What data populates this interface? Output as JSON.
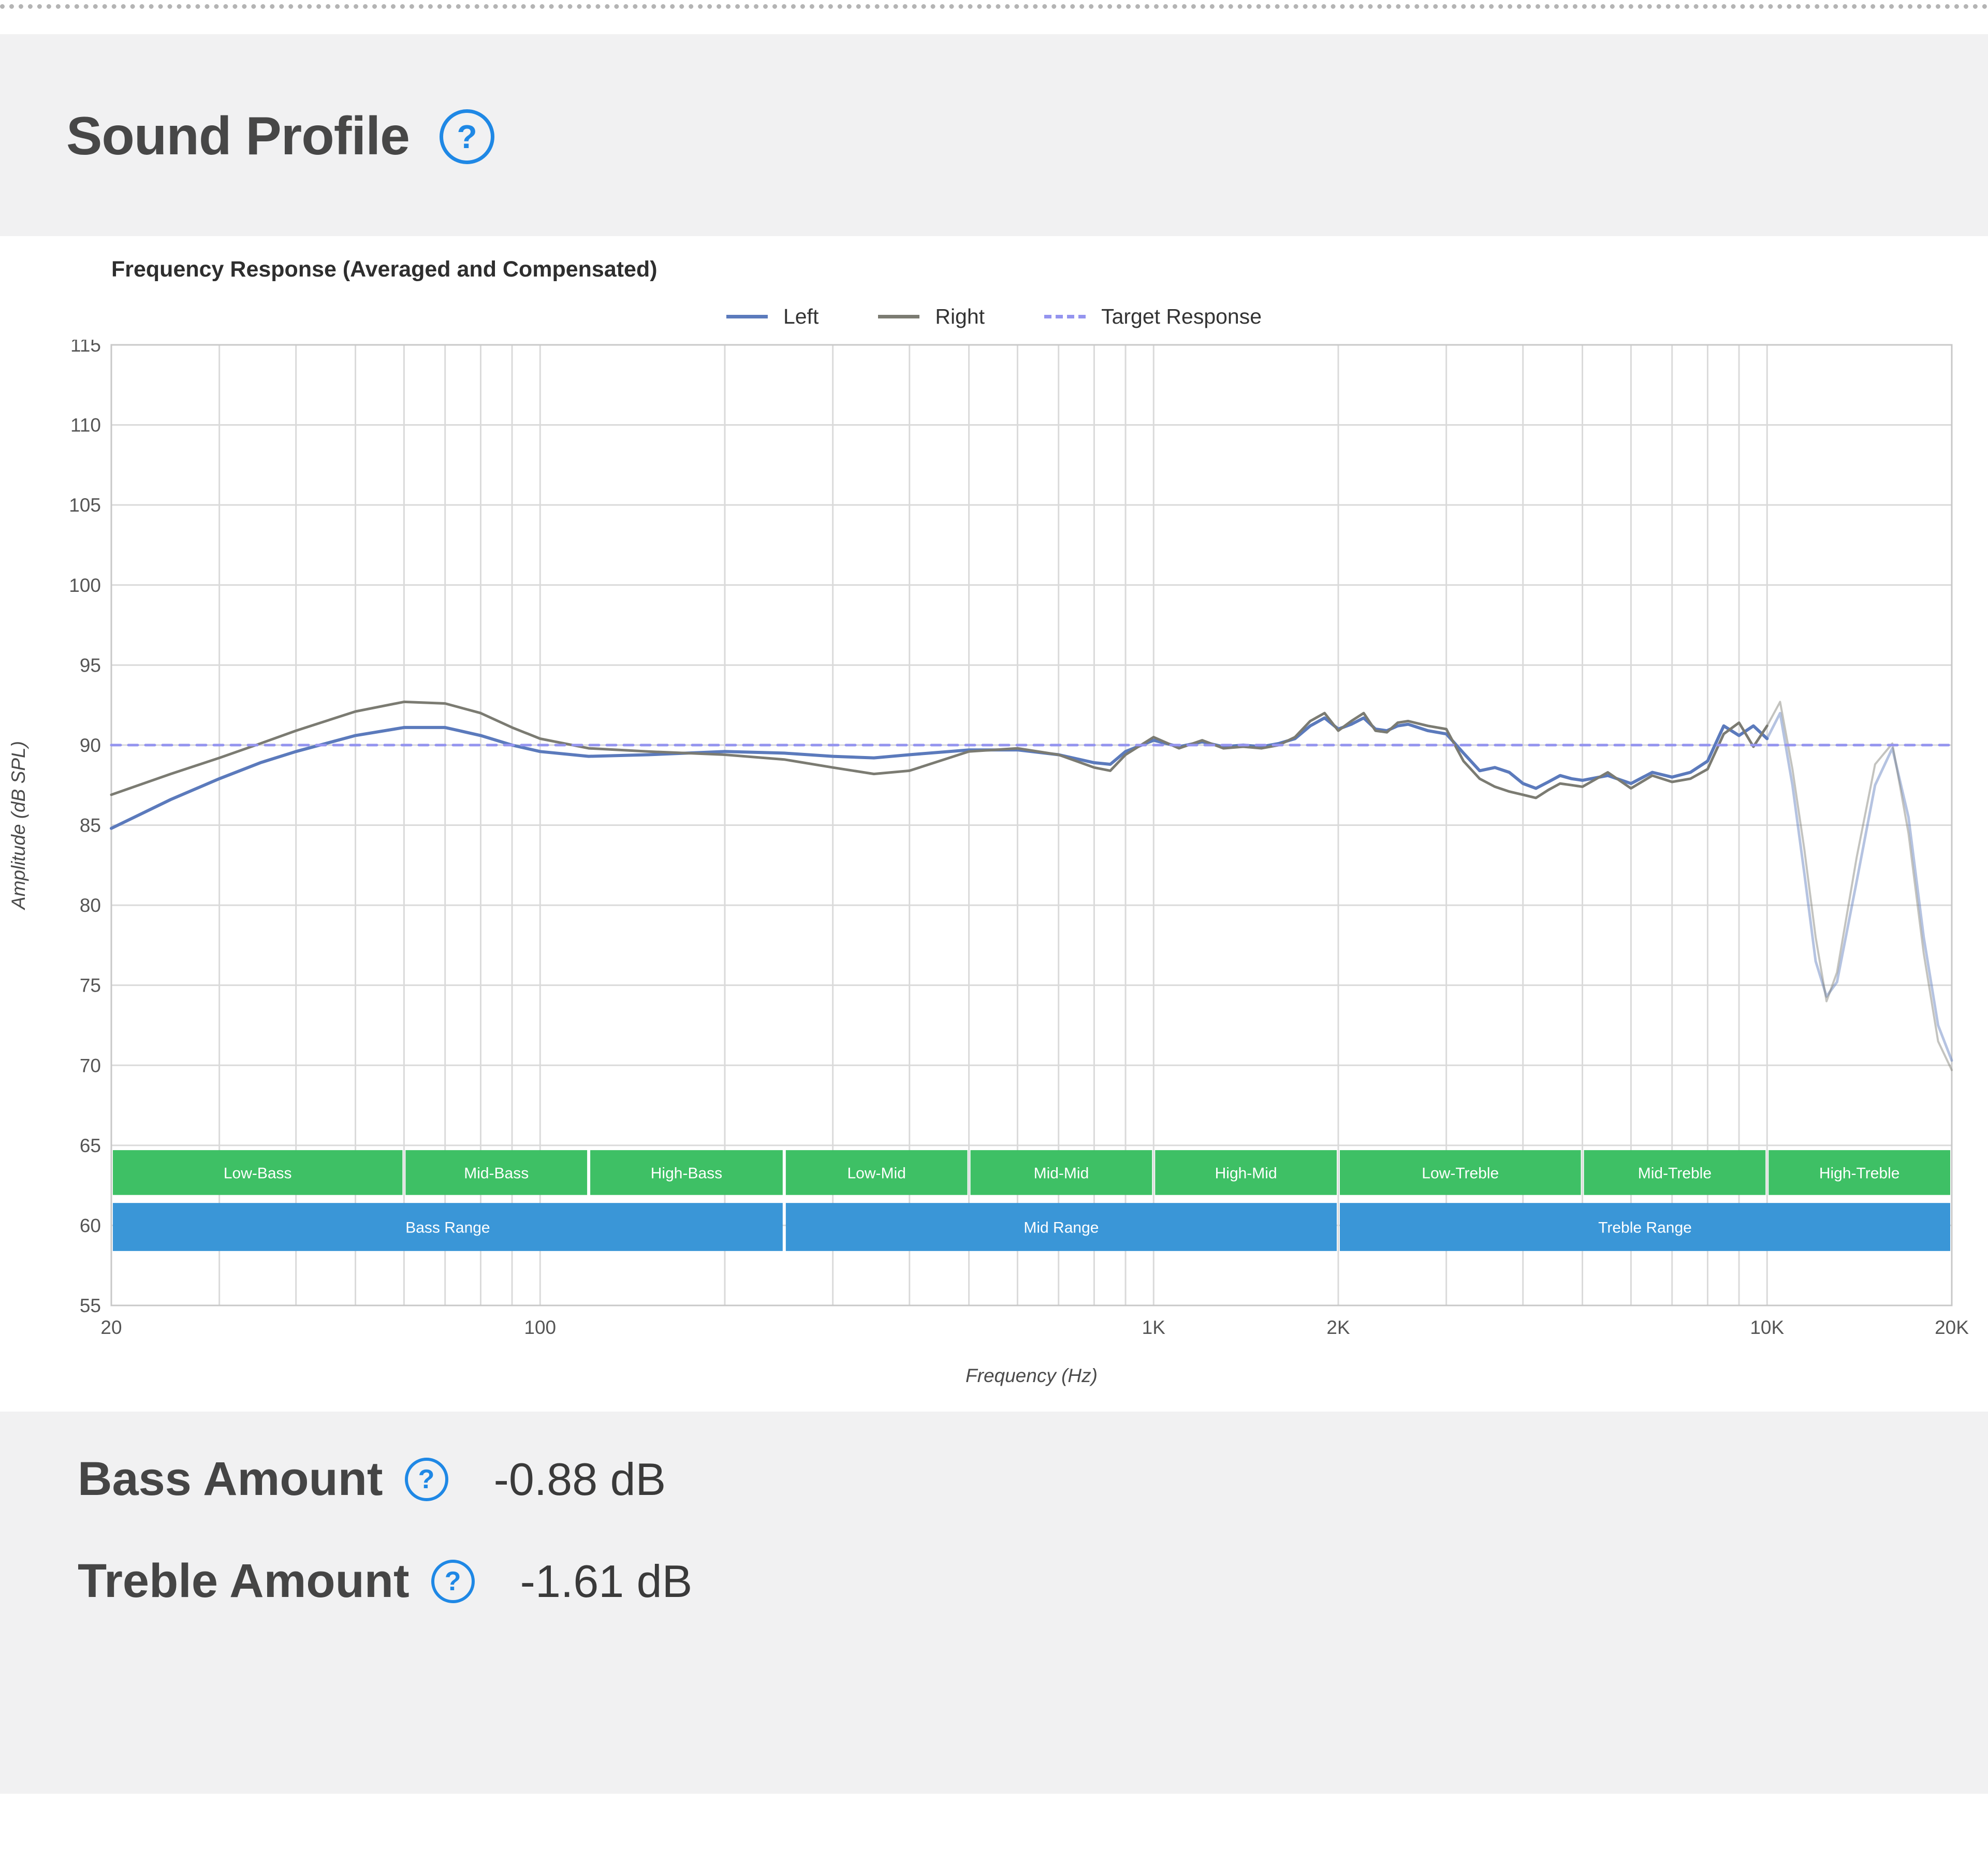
{
  "page": {
    "title": "Sound Profile"
  },
  "icons": {
    "help_glyph": "?"
  },
  "metrics": [
    {
      "label": "Bass Amount",
      "value": "-0.88 dB"
    },
    {
      "label": "Treble Amount",
      "value": "-1.61 dB"
    }
  ],
  "chart_data": {
    "type": "line",
    "title": "Frequency Response (Averaged and Compensated)",
    "xlabel": "Frequency (Hz)",
    "ylabel": "Amplitude (dB SPL)",
    "x_scale": "log",
    "xlim": [
      20,
      20000
    ],
    "ylim": [
      55,
      115
    ],
    "y_ticks": [
      55,
      60,
      65,
      70,
      75,
      80,
      85,
      90,
      95,
      100,
      105,
      110,
      115
    ],
    "x_ticks": [
      {
        "f": 20,
        "label": "20"
      },
      {
        "f": 100,
        "label": "100"
      },
      {
        "f": 1000,
        "label": "1K"
      },
      {
        "f": 2000,
        "label": "2K"
      },
      {
        "f": 10000,
        "label": "10K"
      },
      {
        "f": 20000,
        "label": "20K"
      }
    ],
    "grid": true,
    "legend_position": "top",
    "fade_above_hz": 9800,
    "target_level_db": 90,
    "colors": {
      "left": "#5b7abc",
      "right": "#7b7b72",
      "target": "#9494ef",
      "sub_band": "#3ec065",
      "main_band": "#3a96d7",
      "grid": "#dadada",
      "accent_blue": "#1f88e5"
    },
    "series": [
      {
        "name": "Left",
        "color": "#5b7abc",
        "width": 6,
        "dash": null,
        "fade": true,
        "x": [
          20,
          25,
          30,
          35,
          40,
          50,
          60,
          70,
          80,
          90,
          100,
          120,
          150,
          200,
          250,
          300,
          350,
          400,
          500,
          600,
          700,
          800,
          850,
          900,
          1000,
          1100,
          1200,
          1300,
          1400,
          1500,
          1600,
          1700,
          1800,
          1900,
          2000,
          2100,
          2200,
          2300,
          2400,
          2500,
          2600,
          2800,
          3000,
          3200,
          3400,
          3600,
          3800,
          4000,
          4200,
          4400,
          4600,
          4800,
          5000,
          5500,
          6000,
          6500,
          7000,
          7500,
          8000,
          8500,
          9000,
          9500,
          10000,
          10500,
          11000,
          11500,
          12000,
          12500,
          13000,
          14000,
          15000,
          16000,
          17000,
          18000,
          19000,
          20000
        ],
        "y": [
          84.8,
          86.6,
          87.9,
          88.9,
          89.6,
          90.6,
          91.1,
          91.1,
          90.6,
          90.0,
          89.6,
          89.3,
          89.4,
          89.6,
          89.5,
          89.3,
          89.2,
          89.4,
          89.7,
          89.7,
          89.4,
          88.9,
          88.8,
          89.6,
          90.3,
          89.9,
          90.2,
          89.9,
          90.0,
          89.9,
          90.1,
          90.4,
          91.2,
          91.7,
          91.0,
          91.3,
          91.7,
          91.0,
          90.9,
          91.2,
          91.3,
          90.9,
          90.7,
          89.5,
          88.4,
          88.6,
          88.3,
          87.6,
          87.3,
          87.7,
          88.1,
          87.9,
          87.8,
          88.1,
          87.6,
          88.3,
          88.0,
          88.3,
          89.0,
          91.2,
          90.6,
          91.2,
          90.4,
          92.0,
          87.5,
          82.0,
          76.5,
          74.3,
          75.2,
          81.5,
          87.5,
          89.8,
          85.5,
          78.0,
          72.5,
          70.3
        ]
      },
      {
        "name": "Right",
        "color": "#7b7b72",
        "width": 5,
        "dash": null,
        "fade": true,
        "x": [
          20,
          25,
          30,
          35,
          40,
          50,
          60,
          70,
          80,
          90,
          100,
          120,
          150,
          200,
          250,
          300,
          350,
          400,
          500,
          600,
          700,
          800,
          850,
          900,
          1000,
          1100,
          1200,
          1300,
          1400,
          1500,
          1600,
          1700,
          1800,
          1900,
          2000,
          2100,
          2200,
          2300,
          2400,
          2500,
          2600,
          2800,
          3000,
          3200,
          3400,
          3600,
          3800,
          4000,
          4200,
          4400,
          4600,
          4800,
          5000,
          5500,
          6000,
          6500,
          7000,
          7500,
          8000,
          8500,
          9000,
          9500,
          10000,
          10500,
          11000,
          11500,
          12000,
          12500,
          13000,
          14000,
          15000,
          16000,
          17000,
          18000,
          19000,
          20000
        ],
        "y": [
          86.9,
          88.2,
          89.2,
          90.1,
          90.9,
          92.1,
          92.7,
          92.6,
          92.0,
          91.1,
          90.4,
          89.8,
          89.6,
          89.4,
          89.1,
          88.6,
          88.2,
          88.4,
          89.6,
          89.8,
          89.4,
          88.6,
          88.4,
          89.4,
          90.5,
          89.8,
          90.3,
          89.8,
          89.9,
          89.8,
          90.0,
          90.5,
          91.5,
          92.0,
          90.9,
          91.5,
          92.0,
          90.9,
          90.8,
          91.4,
          91.5,
          91.2,
          91.0,
          89.0,
          87.9,
          87.4,
          87.1,
          86.9,
          86.7,
          87.2,
          87.6,
          87.5,
          87.4,
          88.3,
          87.3,
          88.1,
          87.7,
          87.9,
          88.5,
          90.7,
          91.4,
          89.9,
          91.2,
          92.7,
          88.5,
          83.5,
          78.0,
          74.0,
          75.8,
          83.0,
          88.8,
          90.1,
          84.5,
          77.0,
          71.5,
          69.7
        ]
      },
      {
        "name": "Target Response",
        "color": "#9494ef",
        "width": 5,
        "dash": "18 15",
        "fade": false,
        "x": [
          20,
          20000
        ],
        "y": [
          90,
          90
        ]
      }
    ],
    "bands": {
      "rows": [
        {
          "name": "sub-ranges",
          "color": "#3ec065",
          "db_top": 64.7,
          "db_bottom": 61.9,
          "segments": [
            {
              "label": "Low-Bass",
              "from": 20,
              "to": 60
            },
            {
              "label": "Mid-Bass",
              "from": 60,
              "to": 120
            },
            {
              "label": "High-Bass",
              "from": 120,
              "to": 250
            },
            {
              "label": "Low-Mid",
              "from": 250,
              "to": 500
            },
            {
              "label": "Mid-Mid",
              "from": 500,
              "to": 1000
            },
            {
              "label": "High-Mid",
              "from": 1000,
              "to": 2000
            },
            {
              "label": "Low-Treble",
              "from": 2000,
              "to": 5000
            },
            {
              "label": "Mid-Treble",
              "from": 5000,
              "to": 10000
            },
            {
              "label": "High-Treble",
              "from": 10000,
              "to": 20000
            }
          ]
        },
        {
          "name": "main-ranges",
          "color": "#3a96d7",
          "db_top": 61.4,
          "db_bottom": 58.4,
          "segments": [
            {
              "label": "Bass Range",
              "from": 20,
              "to": 250
            },
            {
              "label": "Mid Range",
              "from": 250,
              "to": 2000
            },
            {
              "label": "Treble Range",
              "from": 2000,
              "to": 20000
            }
          ]
        }
      ]
    }
  }
}
